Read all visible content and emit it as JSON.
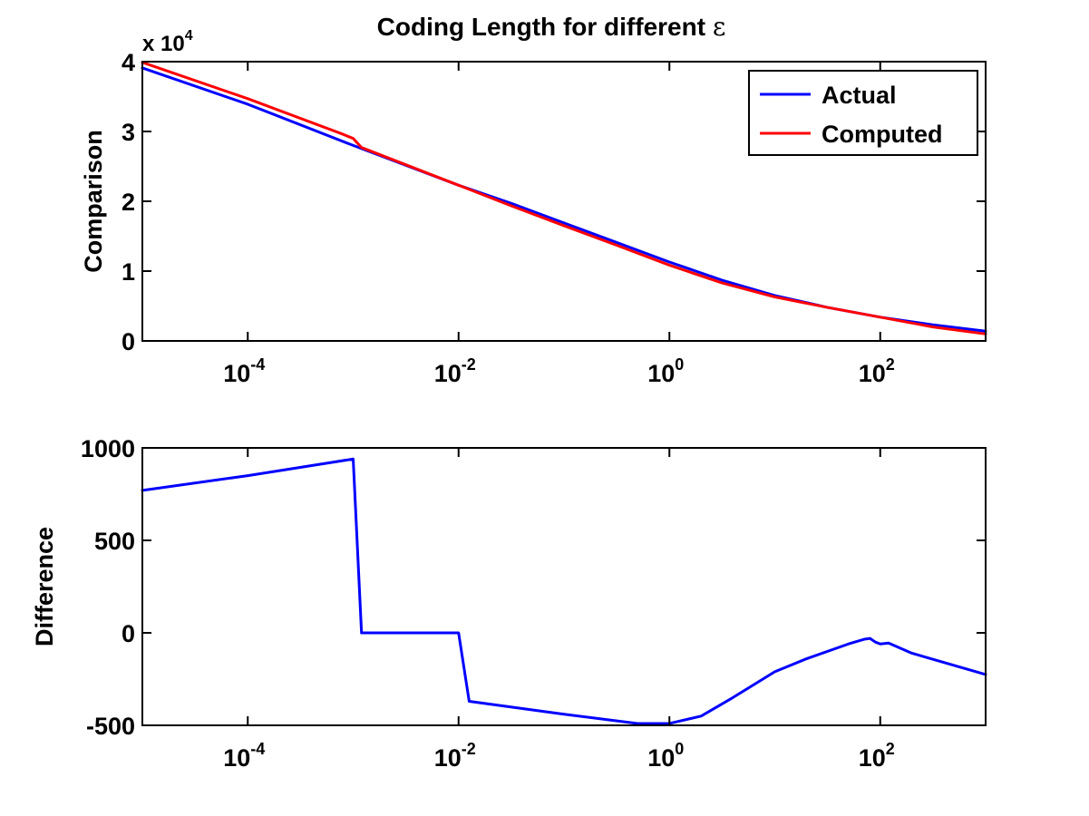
{
  "figure": {
    "title_prefix": "Coding Length for different ",
    "title_symbol": "ε"
  },
  "chart_data": [
    {
      "type": "line",
      "title": "Coding Length for different ε",
      "xlabel": "",
      "ylabel": "Comparison",
      "x_scale": "log",
      "xlim": [
        1e-05,
        1000
      ],
      "ylim": [
        0,
        40000
      ],
      "y_multiplier_label": {
        "base": "x 10",
        "exponent": "4"
      },
      "x_ticks": [
        {
          "base": "10",
          "exponent": "-4",
          "value": 0.0001
        },
        {
          "base": "10",
          "exponent": "-2",
          "value": 0.01
        },
        {
          "base": "10",
          "exponent": "0",
          "value": 1
        },
        {
          "base": "10",
          "exponent": "2",
          "value": 100
        }
      ],
      "y_ticks": [
        {
          "label": "0",
          "value": 0
        },
        {
          "label": "1",
          "value": 10000
        },
        {
          "label": "2",
          "value": 20000
        },
        {
          "label": "3",
          "value": 30000
        },
        {
          "label": "4",
          "value": 40000
        }
      ],
      "legend": "top-right",
      "grid": false,
      "series": [
        {
          "name": "Actual",
          "color": "#0000ff",
          "points": [
            [
              1e-05,
              39100
            ],
            [
              0.0001,
              33900
            ],
            [
              0.001,
              28000
            ],
            [
              0.01,
              22300
            ],
            [
              0.0316,
              19700
            ],
            [
              0.1,
              16900
            ],
            [
              0.316,
              14100
            ],
            [
              1,
              11300
            ],
            [
              3.16,
              8700
            ],
            [
              10,
              6500
            ],
            [
              31.6,
              4800
            ],
            [
              100,
              3400
            ],
            [
              316,
              2300
            ],
            [
              1000,
              1400
            ]
          ]
        },
        {
          "name": "Computed",
          "color": "#ff0000",
          "points": [
            [
              1e-05,
              39900
            ],
            [
              0.0001,
              34700
            ],
            [
              0.0008,
              29600
            ],
            [
              0.001,
              29000
            ],
            [
              0.0012,
              27700
            ],
            [
              0.01,
              22300
            ],
            [
              0.0316,
              19350
            ],
            [
              0.1,
              16500
            ],
            [
              0.316,
              13700
            ],
            [
              1,
              10850
            ],
            [
              3.16,
              8300
            ],
            [
              10,
              6300
            ],
            [
              31.6,
              4800
            ],
            [
              100,
              3400
            ],
            [
              316,
              2000
            ],
            [
              1000,
              1000
            ]
          ]
        }
      ]
    },
    {
      "type": "line",
      "xlabel": "",
      "ylabel": "Difference",
      "x_scale": "log",
      "xlim": [
        1e-05,
        1000
      ],
      "ylim": [
        -500,
        1000
      ],
      "x_ticks": [
        {
          "base": "10",
          "exponent": "-4",
          "value": 0.0001
        },
        {
          "base": "10",
          "exponent": "-2",
          "value": 0.01
        },
        {
          "base": "10",
          "exponent": "0",
          "value": 1
        },
        {
          "base": "10",
          "exponent": "2",
          "value": 100
        }
      ],
      "y_ticks": [
        {
          "label": "-500",
          "value": -500
        },
        {
          "label": "0",
          "value": 0
        },
        {
          "label": "500",
          "value": 500
        },
        {
          "label": "1000",
          "value": 1000
        }
      ],
      "grid": false,
      "series": [
        {
          "color": "#0000ff",
          "points": [
            [
              1e-05,
              770
            ],
            [
              0.0001,
              850
            ],
            [
              0.001,
              940
            ],
            [
              0.0012,
              0
            ],
            [
              0.01,
              0
            ],
            [
              0.0126,
              -370
            ],
            [
              0.1,
              -440
            ],
            [
              0.5,
              -490
            ],
            [
              1,
              -490
            ],
            [
              2,
              -450
            ],
            [
              4,
              -350
            ],
            [
              10,
              -210
            ],
            [
              20,
              -140
            ],
            [
              50,
              -60
            ],
            [
              70,
              -35
            ],
            [
              80,
              -30
            ],
            [
              90,
              -50
            ],
            [
              100,
              -60
            ],
            [
              120,
              -55
            ],
            [
              200,
              -110
            ],
            [
              1000,
              -225
            ]
          ]
        }
      ]
    }
  ]
}
